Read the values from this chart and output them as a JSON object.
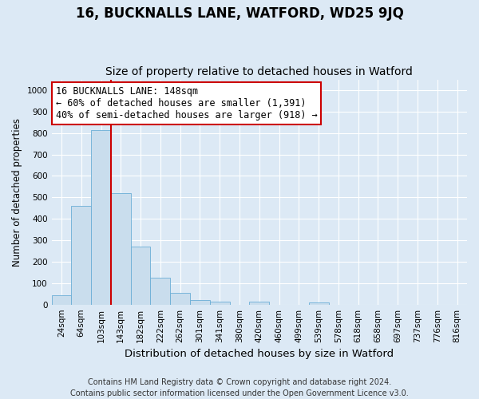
{
  "title": "16, BUCKNALLS LANE, WATFORD, WD25 9JQ",
  "subtitle": "Size of property relative to detached houses in Watford",
  "xlabel": "Distribution of detached houses by size in Watford",
  "ylabel": "Number of detached properties",
  "categories": [
    "24sqm",
    "64sqm",
    "103sqm",
    "143sqm",
    "182sqm",
    "222sqm",
    "262sqm",
    "301sqm",
    "341sqm",
    "380sqm",
    "420sqm",
    "460sqm",
    "499sqm",
    "539sqm",
    "578sqm",
    "618sqm",
    "658sqm",
    "697sqm",
    "737sqm",
    "776sqm",
    "816sqm"
  ],
  "values": [
    42,
    460,
    815,
    520,
    270,
    125,
    55,
    22,
    15,
    0,
    15,
    0,
    0,
    10,
    0,
    0,
    0,
    0,
    0,
    0,
    0
  ],
  "bar_color": "#c9dded",
  "bar_edge_color": "#6aaed6",
  "vline_index": 2.5,
  "vline_color": "#cc0000",
  "annotation_text": "16 BUCKNALLS LANE: 148sqm\n← 60% of detached houses are smaller (1,391)\n40% of semi-detached houses are larger (918) →",
  "annotation_box_facecolor": "#ffffff",
  "annotation_box_edgecolor": "#cc0000",
  "ylim": [
    0,
    1050
  ],
  "yticks": [
    0,
    100,
    200,
    300,
    400,
    500,
    600,
    700,
    800,
    900,
    1000
  ],
  "plot_bg_color": "#dce9f5",
  "fig_bg_color": "#dce9f5",
  "footer": "Contains HM Land Registry data © Crown copyright and database right 2024.\nContains public sector information licensed under the Open Government Licence v3.0.",
  "title_fontsize": 12,
  "subtitle_fontsize": 10,
  "xlabel_fontsize": 9.5,
  "ylabel_fontsize": 8.5,
  "tick_fontsize": 7.5,
  "footer_fontsize": 7,
  "annot_fontsize": 8.5
}
